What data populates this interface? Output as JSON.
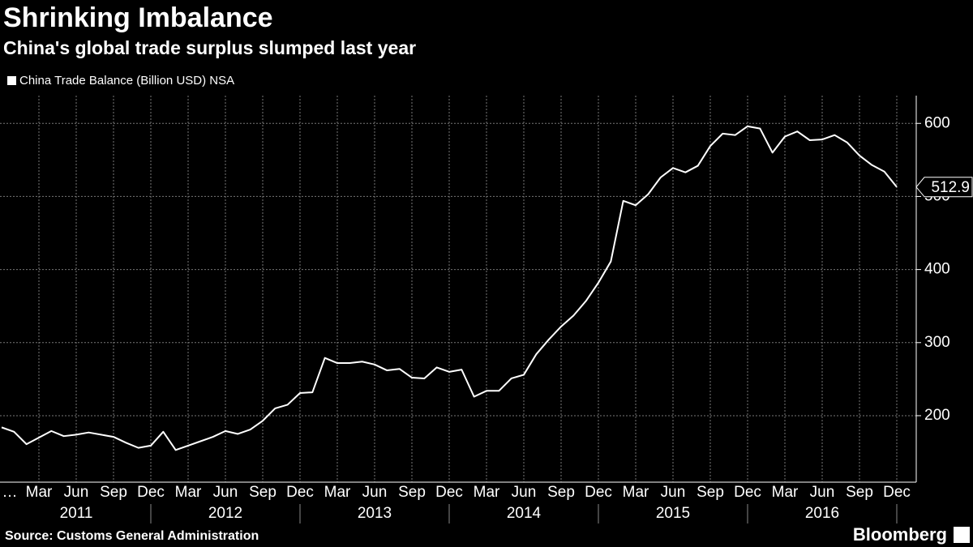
{
  "chart_data": {
    "type": "line",
    "title": "Shrinking Imbalance",
    "subtitle": "China's global trade surplus slumped last year",
    "source": "Source: Customs General Administration",
    "brand": "Bloomberg",
    "categories": [
      "…",
      null,
      null,
      "Mar",
      null,
      null,
      "Jun",
      null,
      null,
      "Sep",
      null,
      null,
      "Dec",
      null,
      null,
      "Mar",
      null,
      null,
      "Jun",
      null,
      null,
      "Sep",
      null,
      null,
      "Dec",
      null,
      null,
      "Mar",
      null,
      null,
      "Jun",
      null,
      null,
      "Sep",
      null,
      null,
      "Dec",
      null,
      null,
      "Mar",
      null,
      null,
      "Jun",
      null,
      null,
      "Sep",
      null,
      null,
      "Dec",
      null,
      null,
      "Mar",
      null,
      null,
      "Jun",
      null,
      null,
      "Sep",
      null,
      null,
      "Dec",
      null,
      null,
      "Mar",
      null,
      null,
      "Jun",
      null,
      null,
      "Sep",
      null,
      null,
      "Dec"
    ],
    "x_group_labels": [
      "2011",
      "2012",
      "2013",
      "2014",
      "2015",
      "2016"
    ],
    "series": [
      {
        "name": "China Trade Balance (Billion USD) NSA",
        "color": "#ffffff",
        "values": [
          184,
          178,
          161,
          170,
          179,
          172,
          174,
          177,
          174,
          171,
          163,
          156,
          159,
          178,
          153,
          159,
          165,
          171,
          179,
          175,
          181,
          193,
          210,
          215,
          231,
          232,
          279,
          272,
          272,
          274,
          270,
          262,
          264,
          252,
          251,
          266,
          260,
          263,
          226,
          234,
          234,
          251,
          256,
          284,
          304,
          322,
          337,
          357,
          382,
          411,
          494,
          488,
          503,
          526,
          539,
          533,
          542,
          569,
          586,
          584,
          596,
          593,
          560,
          582,
          589,
          577,
          578,
          584,
          574,
          556,
          543,
          534,
          512.9
        ]
      }
    ],
    "ylim": [
      109,
      638
    ],
    "yticks": [
      200,
      300,
      400,
      500,
      600
    ],
    "grid": true,
    "last_value_label": true
  }
}
